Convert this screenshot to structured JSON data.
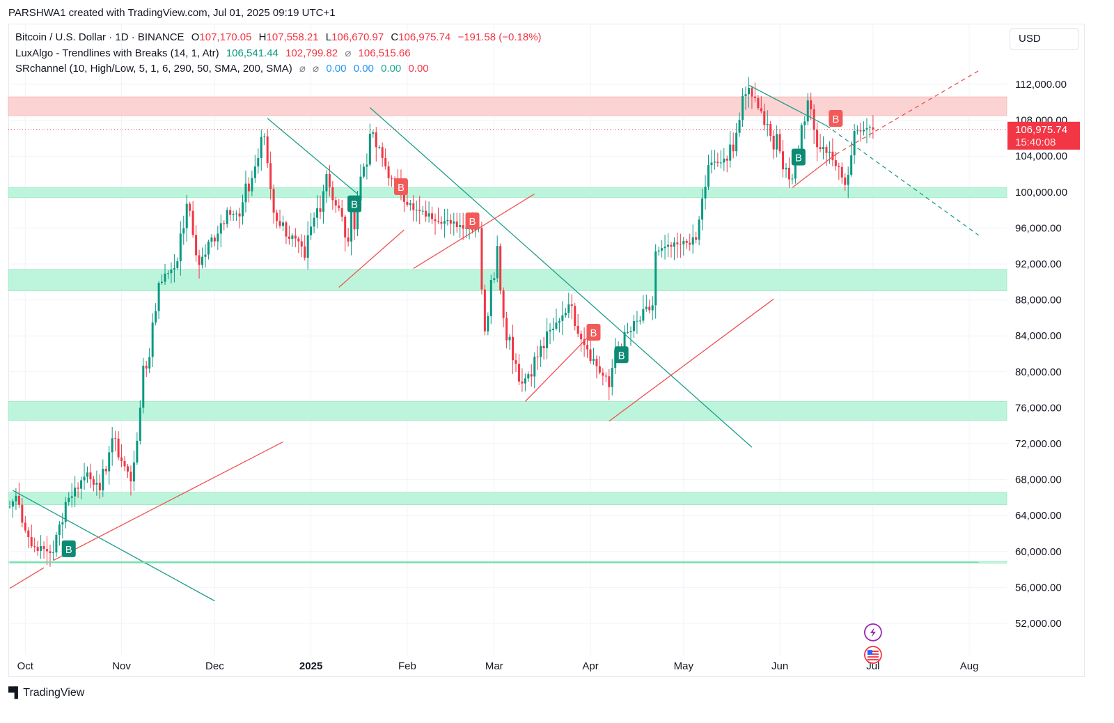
{
  "header": {
    "attribution": "PARSHWA1 created with TradingView.com, Jul 01, 2025 09:19 UTC+1"
  },
  "legend": {
    "symbol": "Bitcoin / U.S. Dollar · 1D · BINANCE",
    "o_label": "O",
    "o_value": "107,170.05",
    "h_label": "H",
    "h_value": "107,558.21",
    "l_label": "L",
    "l_value": "106,670.97",
    "c_label": "C",
    "c_value": "106,975.74",
    "change": "−191.58 (−0.18%)",
    "lux_name": "LuxAlgo - Trendlines with Breaks (14, 1, Atr)",
    "lux_v1": "106,541.44",
    "lux_v2": "102,799.82",
    "lux_v3": "106,515.66",
    "sr_name": "SRchannel (10, High/Low, 5, 1, 6, 290, 50, SMA, 200, SMA)",
    "sr_v1": "0.00",
    "sr_v2": "0.00",
    "sr_v3": "0.00",
    "sr_v4": "0.00"
  },
  "currency_button": "USD",
  "footer": {
    "brand": "TradingView"
  },
  "colors": {
    "up": "#089981",
    "down": "#f23645",
    "resistance_zone": "#fbd3d3",
    "support_zone": "#bdf5dc",
    "grid": "#f0f3fa",
    "price_label": "#f23645"
  },
  "chart_data": {
    "type": "candlestick",
    "title": "Bitcoin / U.S. Dollar · 1D · BINANCE",
    "ylim": [
      48000,
      116000
    ],
    "y_ticks": [
      52000,
      56000,
      60000,
      64000,
      68000,
      72000,
      76000,
      80000,
      84000,
      88000,
      92000,
      96000,
      100000,
      104000,
      108000,
      112000
    ],
    "y_tick_labels": [
      "52,000.00",
      "56,000.00",
      "60,000.00",
      "64,000.00",
      "68,000.00",
      "72,000.00",
      "76,000.00",
      "80,000.00",
      "84,000.00",
      "88,000.00",
      "92,000.00",
      "96,000.00",
      "100,000.00",
      "104,000.00",
      "108,000.00",
      "112,000.00"
    ],
    "x_ticks": [
      {
        "label": "Oct",
        "date": "2024-10-01",
        "bold": false
      },
      {
        "label": "Nov",
        "date": "2024-11-01",
        "bold": false
      },
      {
        "label": "Dec",
        "date": "2024-12-01",
        "bold": false
      },
      {
        "label": "2025",
        "date": "2025-01-01",
        "bold": true
      },
      {
        "label": "Feb",
        "date": "2025-02-01",
        "bold": false
      },
      {
        "label": "Mar",
        "date": "2025-03-01",
        "bold": false
      },
      {
        "label": "Apr",
        "date": "2025-04-01",
        "bold": false
      },
      {
        "label": "May",
        "date": "2025-05-01",
        "bold": false
      },
      {
        "label": "Jun",
        "date": "2025-06-01",
        "bold": false
      },
      {
        "label": "Jul",
        "date": "2025-07-01",
        "bold": false
      },
      {
        "label": "Aug",
        "date": "2025-08-01",
        "bold": false
      }
    ],
    "last_price": 106975.74,
    "last_price_label": "106,975.74",
    "countdown": "15:40:08",
    "resistance_zones": [
      [
        108500,
        110600
      ]
    ],
    "support_zones": [
      [
        99400,
        100500
      ],
      [
        89000,
        91400
      ],
      [
        74600,
        76700
      ],
      [
        65200,
        66600
      ],
      [
        58700,
        58900
      ]
    ],
    "ohlc_keyframes": [
      {
        "date": "2024-09-26",
        "close": 65000
      },
      {
        "date": "2024-09-28",
        "close": 66200
      },
      {
        "date": "2024-10-03",
        "close": 60600
      },
      {
        "date": "2024-10-10",
        "close": 59900
      },
      {
        "date": "2024-10-14",
        "close": 65500
      },
      {
        "date": "2024-10-21",
        "close": 68800
      },
      {
        "date": "2024-10-25",
        "close": 66800
      },
      {
        "date": "2024-10-29",
        "close": 72600
      },
      {
        "date": "2024-11-04",
        "close": 67800
      },
      {
        "date": "2024-11-07",
        "close": 76000
      },
      {
        "date": "2024-11-13",
        "close": 89900
      },
      {
        "date": "2024-11-19",
        "close": 92300
      },
      {
        "date": "2024-11-22",
        "close": 98700
      },
      {
        "date": "2024-11-26",
        "close": 91900
      },
      {
        "date": "2024-12-05",
        "close": 98000
      },
      {
        "date": "2024-12-09",
        "close": 97300
      },
      {
        "date": "2024-12-17",
        "close": 106200
      },
      {
        "date": "2024-12-20",
        "close": 97700
      },
      {
        "date": "2024-12-30",
        "close": 92700
      },
      {
        "date": "2025-01-06",
        "close": 102000
      },
      {
        "date": "2025-01-13",
        "close": 94500
      },
      {
        "date": "2025-01-20",
        "close": 106500
      },
      {
        "date": "2025-01-27",
        "close": 101500
      },
      {
        "date": "2025-02-03",
        "close": 98000
      },
      {
        "date": "2025-02-15",
        "close": 96500
      },
      {
        "date": "2025-02-24",
        "close": 96000
      },
      {
        "date": "2025-02-26",
        "close": 84500
      },
      {
        "date": "2025-03-02",
        "close": 94000
      },
      {
        "date": "2025-03-04",
        "close": 86000
      },
      {
        "date": "2025-03-10",
        "close": 78700
      },
      {
        "date": "2025-03-20",
        "close": 84800
      },
      {
        "date": "2025-03-25",
        "close": 87500
      },
      {
        "date": "2025-03-31",
        "close": 82500
      },
      {
        "date": "2025-04-07",
        "close": 78300
      },
      {
        "date": "2025-04-09",
        "close": 82500
      },
      {
        "date": "2025-04-21",
        "close": 87400
      },
      {
        "date": "2025-04-22",
        "close": 93400
      },
      {
        "date": "2025-04-30",
        "close": 94200
      },
      {
        "date": "2025-05-05",
        "close": 94700
      },
      {
        "date": "2025-05-09",
        "close": 103000
      },
      {
        "date": "2025-05-15",
        "close": 103500
      },
      {
        "date": "2025-05-22",
        "close": 111600
      },
      {
        "date": "2025-05-26",
        "close": 109000
      },
      {
        "date": "2025-06-05",
        "close": 101500
      },
      {
        "date": "2025-06-10",
        "close": 110200
      },
      {
        "date": "2025-06-13",
        "close": 105000
      },
      {
        "date": "2025-06-17",
        "close": 104500
      },
      {
        "date": "2025-06-22",
        "close": 100800
      },
      {
        "date": "2025-06-25",
        "close": 106800
      },
      {
        "date": "2025-06-30",
        "close": 107200
      },
      {
        "date": "2025-07-01",
        "close": 106975
      }
    ],
    "markers": [
      {
        "label": "B",
        "kind": "break-up",
        "date": "2024-10-15",
        "price": 60300
      },
      {
        "label": "B",
        "kind": "break-up",
        "date": "2025-01-15",
        "price": 98700
      },
      {
        "label": "B",
        "kind": "break-down",
        "date": "2025-01-30",
        "price": 100600
      },
      {
        "label": "B",
        "kind": "break-down",
        "date": "2025-02-22",
        "price": 96800
      },
      {
        "label": "B",
        "kind": "break-down",
        "date": "2025-04-02",
        "price": 84400
      },
      {
        "label": "B",
        "kind": "break-up",
        "date": "2025-04-11",
        "price": 81900
      },
      {
        "label": "B",
        "kind": "break-up",
        "date": "2025-06-07",
        "price": 103900
      },
      {
        "label": "B",
        "kind": "break-down",
        "date": "2025-06-19",
        "price": 108200
      }
    ],
    "trendlines_down": [
      [
        {
          "date": "2024-09-27",
          "price": 66800
        },
        {
          "date": "2024-12-01",
          "price": 54500
        }
      ],
      [
        {
          "date": "2024-12-18",
          "price": 108200
        },
        {
          "date": "2025-01-16",
          "price": 99800
        }
      ],
      [
        {
          "date": "2025-01-20",
          "price": 109400
        },
        {
          "date": "2025-05-23",
          "price": 71600
        }
      ],
      [
        {
          "date": "2025-05-22",
          "price": 111900
        },
        {
          "date": "2025-06-16",
          "price": 107400
        }
      ]
    ],
    "trendlines_down_projected": [
      [
        {
          "date": "2025-06-16",
          "price": 107400
        },
        {
          "date": "2025-08-04",
          "price": 95200
        }
      ]
    ],
    "trendlines_up": [
      [
        {
          "date": "2024-09-26",
          "price": 55900
        },
        {
          "date": "2024-10-07",
          "price": 58200
        }
      ],
      [
        {
          "date": "2024-10-10",
          "price": 59000
        },
        {
          "date": "2024-12-23",
          "price": 72200
        }
      ],
      [
        {
          "date": "2025-01-10",
          "price": 89400
        },
        {
          "date": "2025-01-31",
          "price": 95800
        }
      ],
      [
        {
          "date": "2025-02-03",
          "price": 91500
        },
        {
          "date": "2025-03-14",
          "price": 99800
        }
      ],
      [
        {
          "date": "2025-03-11",
          "price": 76700
        },
        {
          "date": "2025-04-02",
          "price": 84500
        }
      ],
      [
        {
          "date": "2025-04-07",
          "price": 74500
        },
        {
          "date": "2025-05-30",
          "price": 88100
        }
      ],
      [
        {
          "date": "2025-06-05",
          "price": 100500
        },
        {
          "date": "2025-06-19",
          "price": 104200
        }
      ]
    ],
    "trendlines_up_projected": [
      [
        {
          "date": "2025-06-19",
          "price": 104200
        },
        {
          "date": "2025-08-04",
          "price": 113500
        }
      ]
    ],
    "flat_lines": [
      {
        "date_from": "2024-09-26",
        "date_to": "2025-08-04",
        "price": 58800
      }
    ],
    "event_icons": [
      {
        "name": "lightning",
        "date": "2025-07-01",
        "price": 51000
      },
      {
        "name": "us-flag",
        "date": "2025-07-01",
        "price": 48500
      }
    ]
  }
}
